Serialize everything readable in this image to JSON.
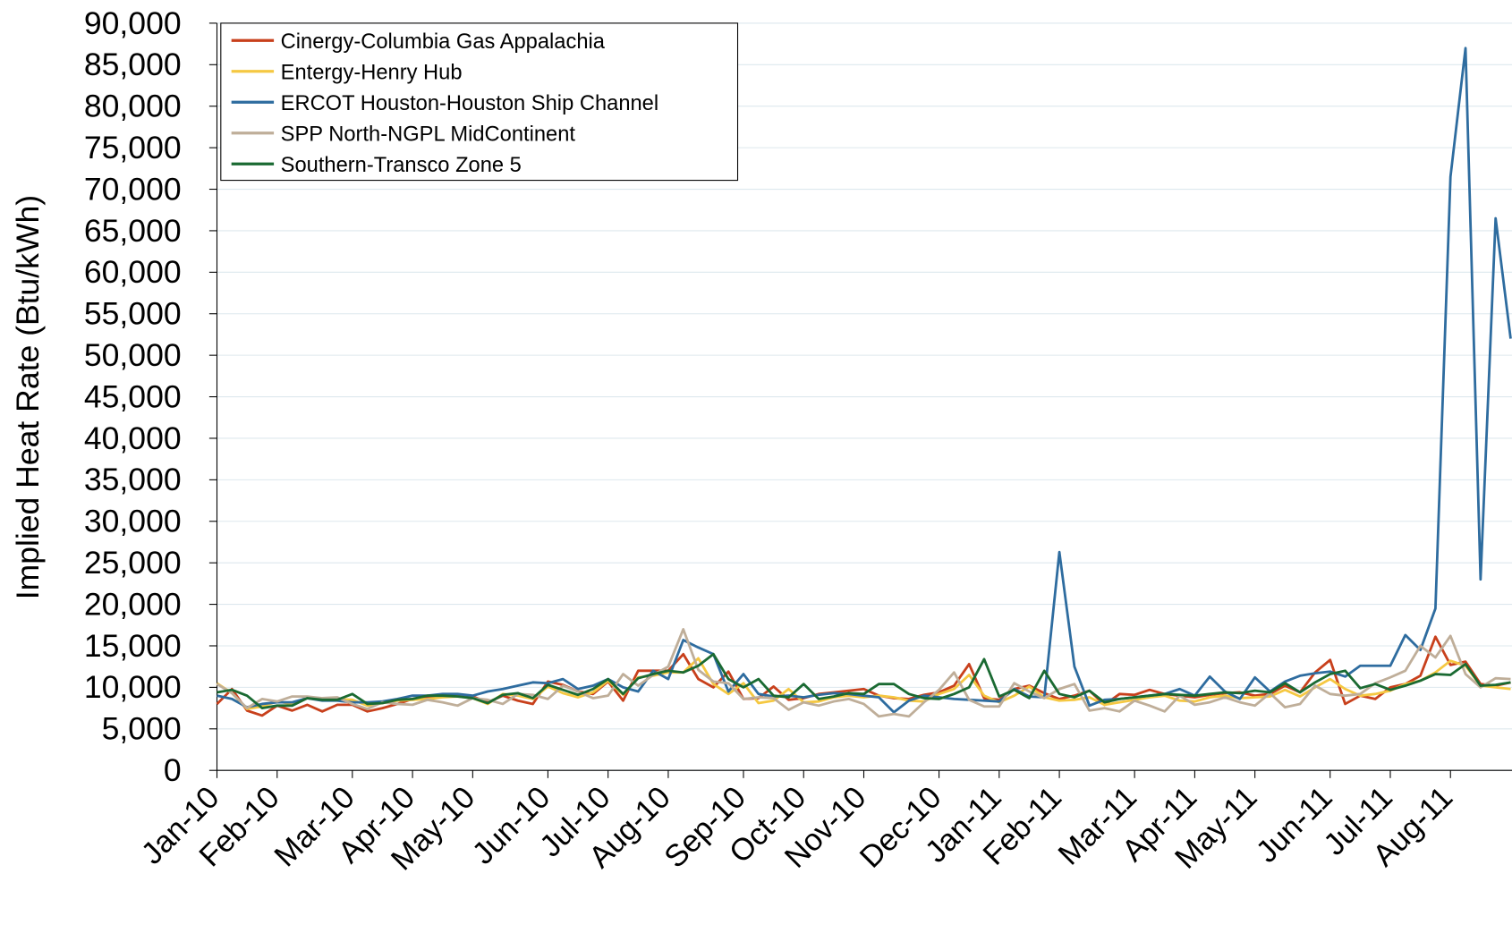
{
  "chart_data": {
    "type": "line",
    "y_label": "Implied Heat Rate (Btu/kWh)",
    "categories": [
      "Jan-10",
      null,
      null,
      null,
      "Feb-10",
      null,
      null,
      null,
      null,
      "Mar-10",
      null,
      null,
      null,
      "Apr-10",
      null,
      null,
      null,
      "May-10",
      null,
      null,
      null,
      null,
      "Jun-10",
      null,
      null,
      null,
      "Jul-10",
      null,
      null,
      null,
      "Aug-10",
      null,
      null,
      null,
      null,
      "Sep-10",
      null,
      null,
      null,
      "Oct-10",
      null,
      null,
      null,
      "Nov-10",
      null,
      null,
      null,
      null,
      "Dec-10",
      null,
      null,
      null,
      "Jan-11",
      null,
      null,
      null,
      "Feb-11",
      null,
      null,
      null,
      null,
      "Mar-11",
      null,
      null,
      null,
      "Apr-11",
      null,
      null,
      null,
      "May-11",
      null,
      null,
      null,
      null,
      "Jun-11",
      null,
      null,
      null,
      "Jul-11",
      null,
      null,
      null,
      "Aug-11",
      null,
      null,
      null,
      null
    ],
    "series": [
      {
        "name": "Cinergy-Columbia Gas Appalachia",
        "color": "#c8401c",
        "values": [
          8000,
          9800,
          7200,
          6600,
          7800,
          7200,
          7900,
          7100,
          7900,
          7900,
          7100,
          7500,
          8000,
          8600,
          8800,
          8900,
          9000,
          8900,
          8200,
          9000,
          8400,
          8000,
          10700,
          10300,
          9500,
          9200,
          10700,
          8400,
          12000,
          12000,
          12000,
          14000,
          11000,
          10000,
          11900,
          8600,
          8700,
          10100,
          8500,
          8700,
          9200,
          9400,
          9600,
          9800,
          9000,
          8700,
          8600,
          9100,
          9400,
          10200,
          12800,
          8700,
          8500,
          9800,
          10200,
          9300,
          8600,
          9000,
          9600,
          7900,
          9200,
          9100,
          9700,
          9200,
          9000,
          8800,
          9100,
          9300,
          9400,
          9000,
          9200,
          10200,
          9400,
          11800,
          13300,
          8000,
          9000,
          8600,
          10000,
          10400,
          11400,
          16100,
          12700,
          13100,
          10400,
          10200,
          10600
        ]
      },
      {
        "name": "Entergy-Henry Hub",
        "color": "#f5c842",
        "values": [
          10500,
          9300,
          7400,
          7700,
          8300,
          8000,
          8800,
          8500,
          8600,
          8500,
          7800,
          8100,
          8400,
          8500,
          8600,
          8800,
          8900,
          8700,
          8000,
          9200,
          9000,
          8600,
          10100,
          9300,
          8800,
          9400,
          10800,
          9100,
          11200,
          11400,
          11800,
          11800,
          13500,
          10400,
          9200,
          10500,
          8100,
          8400,
          9800,
          8200,
          8300,
          8800,
          9000,
          8800,
          9000,
          8800,
          8400,
          8300,
          9200,
          9800,
          11500,
          9000,
          8200,
          9000,
          10100,
          8800,
          8400,
          8500,
          8800,
          7900,
          8200,
          8500,
          8800,
          9000,
          8400,
          8300,
          8800,
          9000,
          8700,
          8800,
          8900,
          9700,
          8900,
          10000,
          11000,
          9800,
          9000,
          9200,
          9600,
          10400,
          10800,
          11800,
          13200,
          12600,
          10200,
          10000,
          9800
        ]
      },
      {
        "name": "ERCOT Houston-Houston Ship Channel",
        "color": "#2e6c9f",
        "values": [
          9000,
          8600,
          7600,
          8000,
          8200,
          8200,
          8700,
          8400,
          8400,
          8200,
          8200,
          8300,
          8600,
          9000,
          9000,
          9200,
          9200,
          9000,
          9500,
          9800,
          10200,
          10600,
          10500,
          11000,
          9800,
          10200,
          11000,
          10000,
          9500,
          12000,
          11000,
          15700,
          14800,
          14000,
          9500,
          11600,
          9200,
          8900,
          9000,
          8800,
          9100,
          9300,
          9200,
          9000,
          8800,
          7000,
          8400,
          9000,
          8800,
          8600,
          8500,
          8400,
          8300,
          9800,
          8900,
          8800,
          26300,
          12500,
          7800,
          8500,
          8600,
          8800,
          9000,
          9200,
          9800,
          9000,
          11300,
          9500,
          8600,
          11200,
          9500,
          10700,
          11400,
          11700,
          11900,
          11300,
          12600,
          12600,
          12600,
          16300,
          14500,
          19500,
          71500,
          87000,
          23000,
          66500,
          52000
        ]
      },
      {
        "name": "SPP North-NGPL MidContinent",
        "color": "#bfae99",
        "values": [
          10400,
          9300,
          7500,
          8600,
          8300,
          8900,
          8900,
          8700,
          8800,
          8000,
          7400,
          8200,
          8000,
          7900,
          8500,
          8200,
          7800,
          8700,
          8500,
          8000,
          9200,
          9100,
          8600,
          10200,
          9500,
          8700,
          9000,
          11600,
          10200,
          11500,
          12500,
          17000,
          12100,
          10700,
          10500,
          8600,
          8800,
          8700,
          7300,
          8200,
          7800,
          8300,
          8600,
          8000,
          6500,
          6800,
          6500,
          8200,
          9700,
          11800,
          8500,
          7700,
          7700,
          10500,
          9500,
          8700,
          9800,
          10400,
          7200,
          7500,
          7100,
          8400,
          7800,
          7100,
          9000,
          7900,
          8200,
          8800,
          8200,
          7800,
          9300,
          7600,
          8000,
          10200,
          9200,
          9000,
          9200,
          10500,
          11200,
          12000,
          15000,
          13600,
          16200,
          11600,
          10000,
          11100,
          11000
        ]
      },
      {
        "name": "Southern-Transco Zone 5",
        "color": "#1a6a32",
        "values": [
          9400,
          9700,
          9000,
          7500,
          7800,
          7800,
          8700,
          8500,
          8500,
          9200,
          8000,
          8100,
          8500,
          8600,
          9000,
          9000,
          8900,
          8700,
          8100,
          9100,
          9300,
          8700,
          10300,
          9700,
          9100,
          9800,
          11000,
          9200,
          11100,
          11600,
          12000,
          11800,
          12600,
          14000,
          11000,
          10000,
          11000,
          9000,
          8800,
          10400,
          8600,
          8900,
          9300,
          9200,
          10400,
          10400,
          9200,
          8700,
          8600,
          9200,
          10000,
          13400,
          8900,
          9700,
          8700,
          12000,
          9200,
          8800,
          9600,
          8200,
          8600,
          8800,
          9000,
          9200,
          9100,
          9000,
          9200,
          9400,
          9300,
          9600,
          9400,
          10500,
          9400,
          10600,
          11600,
          12000,
          9900,
          10400,
          9700,
          10200,
          10800,
          11600,
          11500,
          12800,
          10200,
          10300,
          10600
        ]
      }
    ],
    "ylim": [
      0,
      90000
    ],
    "yticks": [
      0,
      {
        "value": 5000,
        "label": "5,000"
      },
      {
        "value": 10000,
        "label": "10,000"
      },
      {
        "value": 15000,
        "label": "15,000"
      },
      {
        "value": 20000,
        "label": "20,000"
      },
      {
        "value": 25000,
        "label": "25,000"
      },
      {
        "value": 30000,
        "label": "30,000"
      },
      {
        "value": 35000,
        "label": "35,000"
      },
      {
        "value": 40000,
        "label": "40,000"
      },
      {
        "value": 45000,
        "label": "45,000"
      },
      {
        "value": 50000,
        "label": "50,000"
      },
      {
        "value": 55000,
        "label": "55,000"
      },
      {
        "value": 60000,
        "label": "60,000"
      },
      {
        "value": 65000,
        "label": "65,000"
      },
      {
        "value": 70000,
        "label": "70,000"
      },
      {
        "value": 75000,
        "label": "75,000"
      },
      {
        "value": 80000,
        "label": "80,000"
      },
      {
        "value": 85000,
        "label": "85,000"
      },
      {
        "value": 90000,
        "label": "90,000"
      }
    ],
    "grid": true,
    "legend": "top-left"
  }
}
